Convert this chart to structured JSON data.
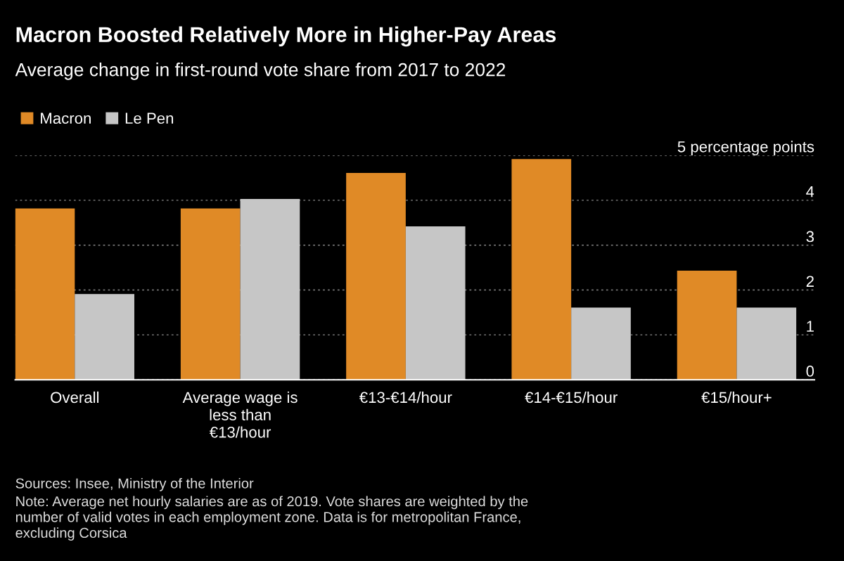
{
  "chart_data": {
    "type": "bar",
    "title": "Macron Boosted Relatively More in Higher-Pay Areas",
    "subtitle": "Average change in first-round vote share from 2017 to 2022",
    "categories": [
      "Overall",
      "Average wage is\nless than\n€13/hour",
      "€13-€14/hour",
      "€14-€15/hour",
      "€15/hour+"
    ],
    "series": [
      {
        "name": "Macron",
        "color": "#e08a26",
        "values": [
          3.82,
          3.82,
          4.61,
          4.92,
          2.43
        ]
      },
      {
        "name": "Le Pen",
        "color": "#c6c6c6",
        "values": [
          1.91,
          4.03,
          3.42,
          1.61,
          1.61
        ]
      }
    ],
    "ylim": [
      0,
      5
    ],
    "yticks": [
      0,
      1,
      2,
      3,
      4,
      {
        "value": 5,
        "label": "5 percentage points"
      }
    ],
    "grid": "y",
    "legend": "top left",
    "annotations": [
      "Sources: Insee, Ministry of the Interior",
      "Note: Average net hourly salaries are as of 2019. Vote shares are weighted by the\nnumber of valid votes in each employment zone. Data is for metropolitan France,\nexcluding Corsica"
    ]
  }
}
